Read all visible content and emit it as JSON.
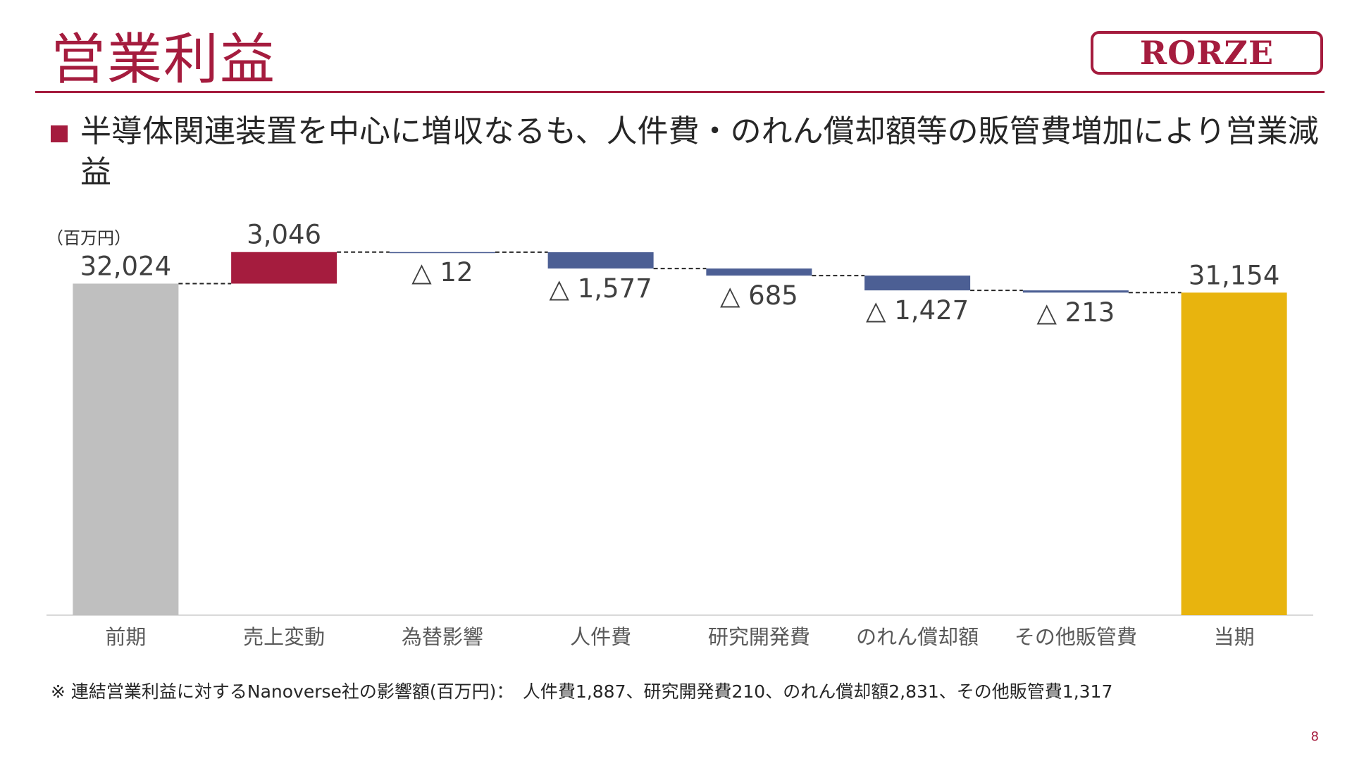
{
  "header": {
    "title": "営業利益",
    "logo_text": "RORZE"
  },
  "headline": "半導体関連装置を中心に増収なるも、人件費・のれん償却額等の販管費増加により営業減益",
  "colors": {
    "brand": "#a51c3e",
    "base": "#bfbfbf",
    "increase": "#a51c3e",
    "decrease": "#4c5f94",
    "current": "#e8b40e"
  },
  "chart_data": {
    "type": "bar",
    "subtype": "waterfall",
    "unit_label": "（百万円）",
    "categories": [
      "前期",
      "売上変動",
      "為替影響",
      "人件費",
      "研究開発費",
      "のれん償却額",
      "その他販管費",
      "当期"
    ],
    "values": [
      32024,
      3046,
      -12,
      -1577,
      -685,
      -1427,
      -213,
      31154
    ],
    "bar_kind": [
      "total",
      "increase",
      "decrease",
      "decrease",
      "decrease",
      "decrease",
      "decrease",
      "total"
    ],
    "value_labels": [
      "32,024",
      "3,046",
      "△ 12",
      "△ 1,577",
      "△ 685",
      "△ 1,427",
      "△ 213",
      "31,154"
    ],
    "ylim": [
      0,
      40000
    ],
    "grid": false,
    "legend": "none"
  },
  "footnote": "※ 連結営業利益に対するNanoverse社の影響額(百万円)：　人件費1,887、研究開発費210、のれん償却額2,831、その他販管費1,317",
  "page_number": "8"
}
